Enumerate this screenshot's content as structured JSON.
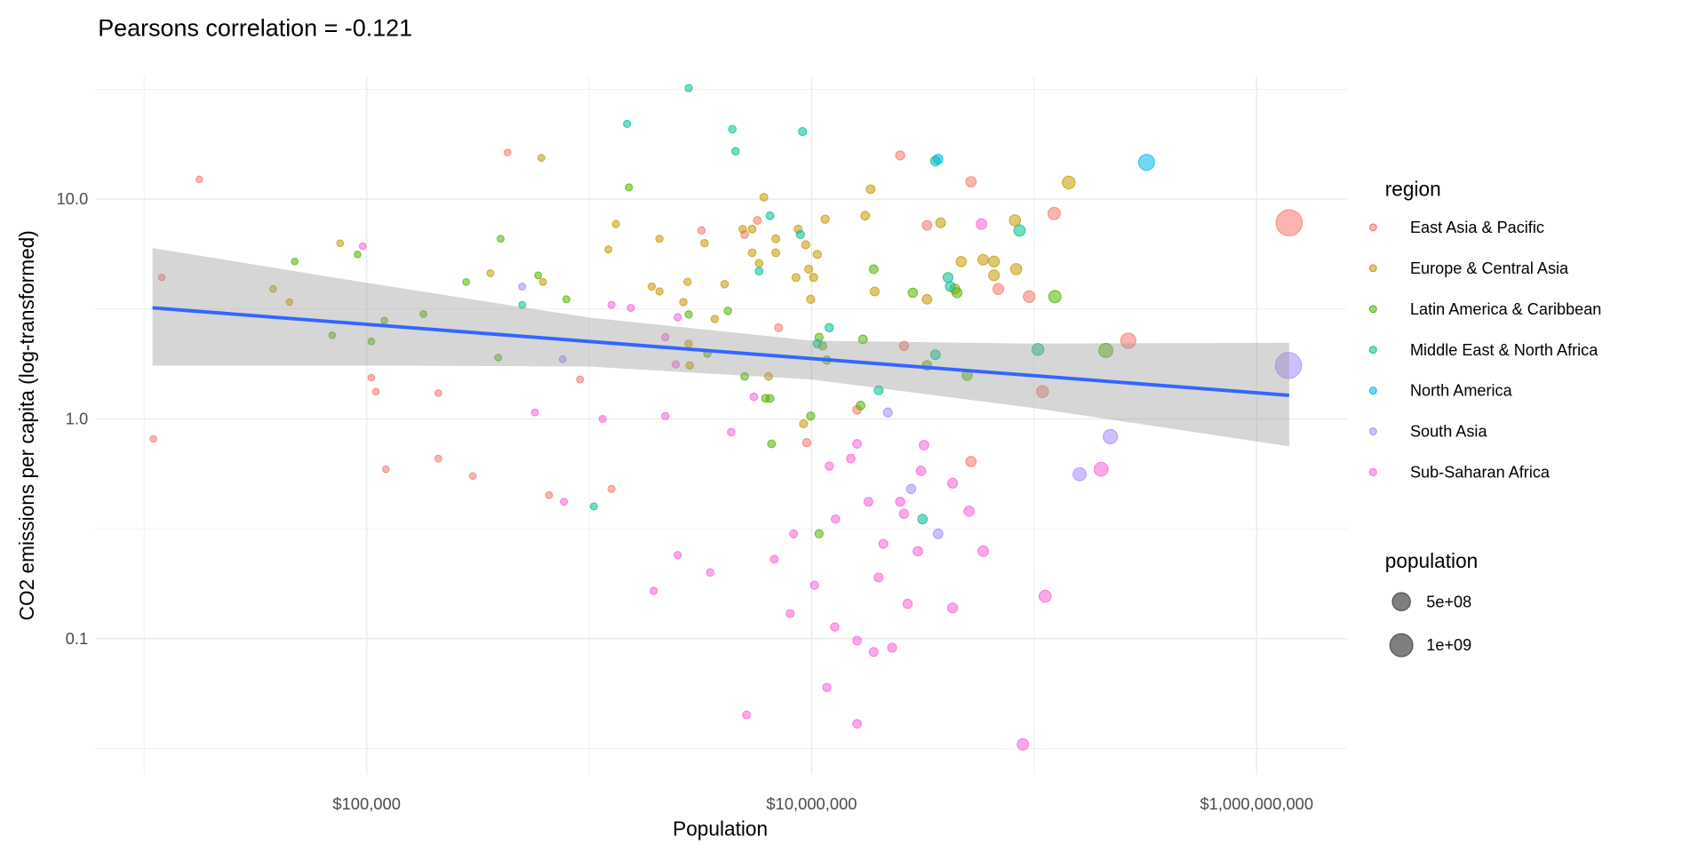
{
  "chart_data": {
    "type": "scatter",
    "title": "Pearsons correlation =  -0.121",
    "xlabel": "Population",
    "ylabel": "CO2 emissions per capita (log-transformed)",
    "x_scale": "log10",
    "y_scale": "log10",
    "xlim": [
      6050,
      2550000000
    ],
    "ylim": [
      0.024,
      36.3
    ],
    "x_ticks": [
      {
        "value": 100000,
        "label": "$100,000"
      },
      {
        "value": 10000000,
        "label": "$10,000,000"
      },
      {
        "value": 1000000000,
        "label": "$1,000,000,000"
      }
    ],
    "y_ticks": [
      {
        "value": 10,
        "label": "10.0"
      },
      {
        "value": 1,
        "label": "1.0"
      },
      {
        "value": 0.1,
        "label": "0.1"
      }
    ],
    "grid": true,
    "legend_placement": "right",
    "color_legend_title": "region",
    "size_legend_title": "population",
    "size_legend": [
      {
        "value": 500000000,
        "label": "5e+08"
      },
      {
        "value": 1000000000,
        "label": "1e+09"
      }
    ],
    "series": [
      {
        "name": "East Asia & Pacific",
        "color": "#F8766D",
        "points": [
          [
            11000,
            0.81
          ],
          [
            12000,
            4.4
          ],
          [
            17700,
            12.3
          ],
          [
            105000,
            1.54
          ],
          [
            110000,
            1.33
          ],
          [
            122000,
            0.59
          ],
          [
            210000,
            1.31
          ],
          [
            210000,
            0.66
          ],
          [
            300000,
            0.55
          ],
          [
            430000,
            16.3
          ],
          [
            660000,
            0.45
          ],
          [
            910000,
            1.51
          ],
          [
            1260000,
            0.48
          ],
          [
            3200000,
            7.2
          ],
          [
            5000000,
            6.9
          ],
          [
            5700000,
            8.0
          ],
          [
            7100000,
            2.6
          ],
          [
            25000000,
            15.8
          ],
          [
            33000000,
            7.6
          ],
          [
            52000000,
            12
          ],
          [
            95000000,
            3.6
          ],
          [
            109000000,
            1.33
          ],
          [
            123000000,
            8.6
          ],
          [
            69000000,
            3.9
          ],
          [
            265000000,
            2.27
          ],
          [
            1400000000,
            7.8
          ],
          [
            26000000,
            2.15
          ],
          [
            52000000,
            0.64
          ],
          [
            9500000,
            0.78
          ],
          [
            16000000,
            1.1
          ]
        ]
      },
      {
        "name": "Europe & Central Asia",
        "color": "#C49A00",
        "points": [
          [
            76000,
            6.3
          ],
          [
            38000,
            3.9
          ],
          [
            45000,
            3.4
          ],
          [
            360000,
            4.6
          ],
          [
            610000,
            15.4
          ],
          [
            620000,
            4.2
          ],
          [
            1320000,
            7.7
          ],
          [
            1220000,
            5.9
          ],
          [
            2070000,
            6.6
          ],
          [
            1910000,
            4.0
          ],
          [
            2070000,
            3.8
          ],
          [
            2770000,
            4.2
          ],
          [
            4060000,
            4.1
          ],
          [
            2650000,
            3.4
          ],
          [
            3670000,
            2.85
          ],
          [
            2800000,
            2.2
          ],
          [
            2830000,
            1.75
          ],
          [
            3300000,
            6.3
          ],
          [
            4900000,
            7.3
          ],
          [
            5400000,
            7.3
          ],
          [
            5400000,
            5.7
          ],
          [
            5800000,
            5.1
          ],
          [
            6100000,
            10.2
          ],
          [
            6900000,
            6.6
          ],
          [
            6900000,
            5.7
          ],
          [
            8700000,
            7.3
          ],
          [
            9400000,
            6.2
          ],
          [
            10600000,
            5.6
          ],
          [
            9700000,
            4.8
          ],
          [
            8500000,
            4.4
          ],
          [
            10200000,
            4.4
          ],
          [
            9900000,
            3.5
          ],
          [
            11500000,
            8.1
          ],
          [
            6400000,
            1.56
          ],
          [
            9200000,
            0.95
          ],
          [
            18400000,
            11.1
          ],
          [
            17400000,
            8.4
          ],
          [
            19200000,
            3.8
          ],
          [
            33000000,
            3.5
          ],
          [
            38000000,
            7.8
          ],
          [
            47000000,
            5.2
          ],
          [
            59000000,
            5.3
          ],
          [
            66000000,
            5.2
          ],
          [
            66000000,
            4.5
          ],
          [
            83000000,
            4.8
          ],
          [
            82000000,
            8.0
          ],
          [
            143000000,
            11.9
          ],
          [
            44000000,
            3.9
          ]
        ]
      },
      {
        "name": "Latin America & Caribbean",
        "color": "#53B400",
        "points": [
          [
            47500,
            5.2
          ],
          [
            91000,
            5.6
          ],
          [
            400000,
            6.6
          ],
          [
            280000,
            4.2
          ],
          [
            590000,
            4.5
          ],
          [
            790000,
            3.5
          ],
          [
            70000,
            2.4
          ],
          [
            105000,
            2.25
          ],
          [
            120000,
            2.8
          ],
          [
            180000,
            3.0
          ],
          [
            390000,
            1.9
          ],
          [
            1510000,
            11.3
          ],
          [
            2800000,
            2.99
          ],
          [
            4200000,
            3.1
          ],
          [
            3400000,
            1.98
          ],
          [
            5000000,
            1.56
          ],
          [
            6200000,
            1.24
          ],
          [
            6500000,
            1.24
          ],
          [
            9900000,
            1.03
          ],
          [
            10800000,
            2.35
          ],
          [
            11200000,
            2.15
          ],
          [
            11700000,
            1.85
          ],
          [
            17000000,
            2.3
          ],
          [
            19000000,
            4.8
          ],
          [
            28500000,
            3.75
          ],
          [
            33000000,
            1.75
          ],
          [
            45000000,
            3.75
          ],
          [
            50000000,
            1.58
          ],
          [
            124000000,
            3.6
          ],
          [
            210000000,
            2.05
          ],
          [
            16600000,
            1.15
          ],
          [
            6600000,
            0.77
          ],
          [
            10800000,
            0.3
          ]
        ]
      },
      {
        "name": "Middle East & North Africa",
        "color": "#00C094",
        "points": [
          [
            2800000,
            32
          ],
          [
            1480000,
            22
          ],
          [
            4400000,
            20.8
          ],
          [
            4550000,
            16.5
          ],
          [
            9100000,
            20.3
          ],
          [
            6500000,
            8.4
          ],
          [
            8900000,
            6.9
          ],
          [
            5800000,
            4.7
          ],
          [
            12000000,
            2.6
          ],
          [
            10600000,
            2.2
          ],
          [
            36000000,
            14.9
          ],
          [
            41000000,
            4.4
          ],
          [
            42000000,
            4.0
          ],
          [
            86000000,
            7.2
          ],
          [
            36000000,
            1.96
          ],
          [
            104000000,
            2.07
          ],
          [
            20000000,
            1.35
          ],
          [
            1050000,
            0.4
          ],
          [
            31500000,
            0.35
          ],
          [
            500000,
            3.3
          ]
        ]
      },
      {
        "name": "North America",
        "color": "#00B6EB",
        "points": [
          [
            37000000,
            15.2
          ],
          [
            320000000,
            14.7
          ]
        ]
      },
      {
        "name": "South Asia",
        "color": "#A58AFF",
        "points": [
          [
            500000,
            4.0
          ],
          [
            760000,
            1.87
          ],
          [
            22000000,
            1.07
          ],
          [
            28000000,
            0.48
          ],
          [
            37000000,
            0.3
          ],
          [
            160000000,
            0.56
          ],
          [
            220000000,
            0.83
          ],
          [
            1390000000,
            1.75
          ]
        ]
      },
      {
        "name": "Sub-Saharan Africa",
        "color": "#FB61D7",
        "points": [
          [
            96000,
            6.1
          ],
          [
            1260000,
            3.3
          ],
          [
            1540000,
            3.2
          ],
          [
            2500000,
            2.9
          ],
          [
            2200000,
            2.35
          ],
          [
            2450000,
            1.77
          ],
          [
            5500000,
            1.26
          ],
          [
            570000,
            1.07
          ],
          [
            1150000,
            1.0
          ],
          [
            2200000,
            1.03
          ],
          [
            58000000,
            7.7
          ],
          [
            4350000,
            0.87
          ],
          [
            12000000,
            0.61
          ],
          [
            16000000,
            0.77
          ],
          [
            15000000,
            0.66
          ],
          [
            32000000,
            0.76
          ],
          [
            31000000,
            0.58
          ],
          [
            25000000,
            0.42
          ],
          [
            26000000,
            0.37
          ],
          [
            18000000,
            0.42
          ],
          [
            43000000,
            0.51
          ],
          [
            51000000,
            0.38
          ],
          [
            21000000,
            0.27
          ],
          [
            30000000,
            0.25
          ],
          [
            59000000,
            0.25
          ],
          [
            20000000,
            0.19
          ],
          [
            12800000,
            0.35
          ],
          [
            8300000,
            0.3
          ],
          [
            10300000,
            0.175
          ],
          [
            6800000,
            0.23
          ],
          [
            3500000,
            0.2
          ],
          [
            2500000,
            0.24
          ],
          [
            1950000,
            0.165
          ],
          [
            8000000,
            0.13
          ],
          [
            12700000,
            0.113
          ],
          [
            27000000,
            0.144
          ],
          [
            43000000,
            0.138
          ],
          [
            112000000,
            0.156
          ],
          [
            16000000,
            0.098
          ],
          [
            19000000,
            0.087
          ],
          [
            23000000,
            0.091
          ],
          [
            11700000,
            0.06
          ],
          [
            16000000,
            0.041
          ],
          [
            5100000,
            0.045
          ],
          [
            89000000,
            0.033
          ],
          [
            200000000,
            0.59
          ],
          [
            770000,
            0.42
          ]
        ]
      }
    ],
    "fit": {
      "color": "#3366FF",
      "x": [
        10900,
        1400000000
      ],
      "y": [
        3.2,
        1.28
      ],
      "ribbon": {
        "x": [
          10900,
          100000,
          1000000,
          10000000,
          100000000,
          1400000000
        ],
        "upper": [
          5.99,
          4.16,
          2.89,
          2.27,
          2.2,
          2.22
        ],
        "lower": [
          1.75,
          1.75,
          1.73,
          1.51,
          1.12,
          0.75
        ]
      }
    }
  }
}
